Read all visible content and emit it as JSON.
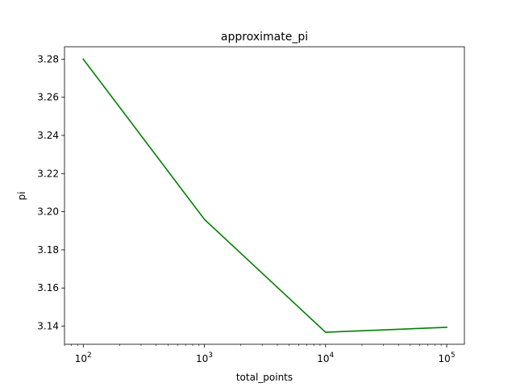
{
  "chart_data": {
    "type": "line",
    "title": "approximate_pi",
    "xlabel": "total_points",
    "ylabel": "pi",
    "x_scale": "log",
    "x_ticks": [
      {
        "value": 100,
        "base": "10",
        "exp": "2"
      },
      {
        "value": 1000,
        "base": "10",
        "exp": "3"
      },
      {
        "value": 10000,
        "base": "10",
        "exp": "4"
      },
      {
        "value": 100000,
        "base": "10",
        "exp": "5"
      }
    ],
    "y_ticks": [
      "3.14",
      "3.16",
      "3.18",
      "3.20",
      "3.22",
      "3.24",
      "3.26",
      "3.28"
    ],
    "xlim": [
      70,
      140000
    ],
    "ylim": [
      3.1305,
      3.2865
    ],
    "grid": false,
    "series": [
      {
        "color": "#008000",
        "x": [
          100,
          1000,
          10000,
          100000
        ],
        "y": [
          3.28,
          3.196,
          3.1368,
          3.1394
        ]
      }
    ]
  }
}
